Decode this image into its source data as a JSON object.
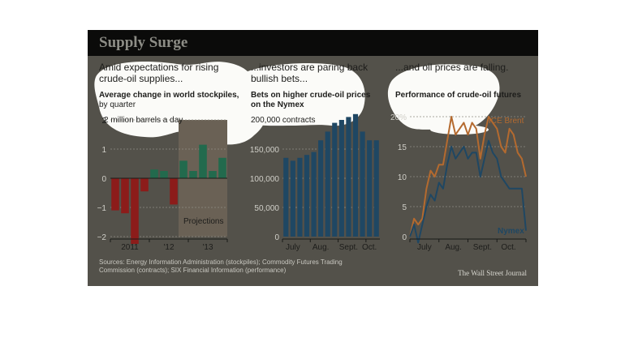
{
  "header": {
    "title": "Supply Surge"
  },
  "panels": [
    {
      "heading": "Amid expectations for rising crude-oil supplies...",
      "subtitle": "Average change in world stockpiles,",
      "subtitle2": "by quarter",
      "unit": "2 million barrels a day",
      "note": "Projections"
    },
    {
      "heading": "...investors are paring back bullish bets...",
      "subtitle": "Bets on higher crude-oil prices",
      "subtitle2": "on the Nymex",
      "unit": "200,000 contracts"
    },
    {
      "heading": "...and oil prices are falling.",
      "subtitle": "Performance of crude-oil futures"
    }
  ],
  "footer": {
    "sources": "Sources: Energy Information Administration (stockpiles); Commodity Futures Trading Commission (contracts); SIX Financial Information (performance)",
    "credit": "The Wall Street Journal"
  },
  "colors": {
    "negative": "#8c1c1a",
    "positive": "#226a4d",
    "bars": "#1f4763",
    "brent": "#b46a2f",
    "nymex": "#1f4763",
    "projection_shade": "#6a6155",
    "background": "#53514a"
  },
  "chart_data": [
    {
      "type": "bar",
      "ylim": [
        -2,
        2
      ],
      "yticks": [
        "2",
        "1",
        "0",
        "−1",
        "−2"
      ],
      "yticks_values": [
        2,
        1,
        0,
        -1,
        -2
      ],
      "xticks": [
        "2011",
        "'12",
        "'13"
      ],
      "values": [
        -1.1,
        -1.2,
        -2.25,
        -0.45,
        0.3,
        0.25,
        -0.9,
        0.6,
        0.25,
        1.15,
        0.25,
        0.7
      ],
      "projection_start_index": 7
    },
    {
      "type": "bar",
      "ylim": [
        0,
        200000
      ],
      "yticks": [
        "0",
        "50,000",
        "100,000",
        "150,000"
      ],
      "yticks_values": [
        0,
        50000,
        100000,
        150000
      ],
      "xticks": [
        "July",
        "Aug.",
        "Sept.",
        "Oct."
      ],
      "values": [
        135000,
        130000,
        135000,
        140000,
        145000,
        165000,
        180000,
        195000,
        200000,
        205000,
        210000,
        180000,
        165000,
        165000
      ]
    },
    {
      "type": "line",
      "ylim": [
        0,
        20
      ],
      "yticks": [
        "0",
        "5",
        "10",
        "15",
        "20%"
      ],
      "yticks_values": [
        0,
        5,
        10,
        15,
        20
      ],
      "xticks": [
        "July",
        "Aug.",
        "Sept.",
        "Oct."
      ],
      "series": [
        {
          "name": "ICE Brent",
          "values": [
            0,
            3,
            2,
            3,
            8,
            11,
            10,
            12,
            12,
            16,
            20,
            17,
            18,
            19,
            17,
            19,
            18,
            13,
            17,
            20,
            19,
            18,
            15,
            14,
            18,
            17,
            14,
            13,
            10
          ]
        },
        {
          "name": "Nymex",
          "values": [
            0,
            2,
            -1,
            2,
            5,
            7,
            6,
            9,
            8,
            12,
            15,
            13,
            14,
            15,
            13,
            14,
            14,
            10,
            13,
            16,
            14,
            13,
            10,
            9,
            8,
            8,
            8,
            8,
            1
          ]
        }
      ]
    }
  ]
}
